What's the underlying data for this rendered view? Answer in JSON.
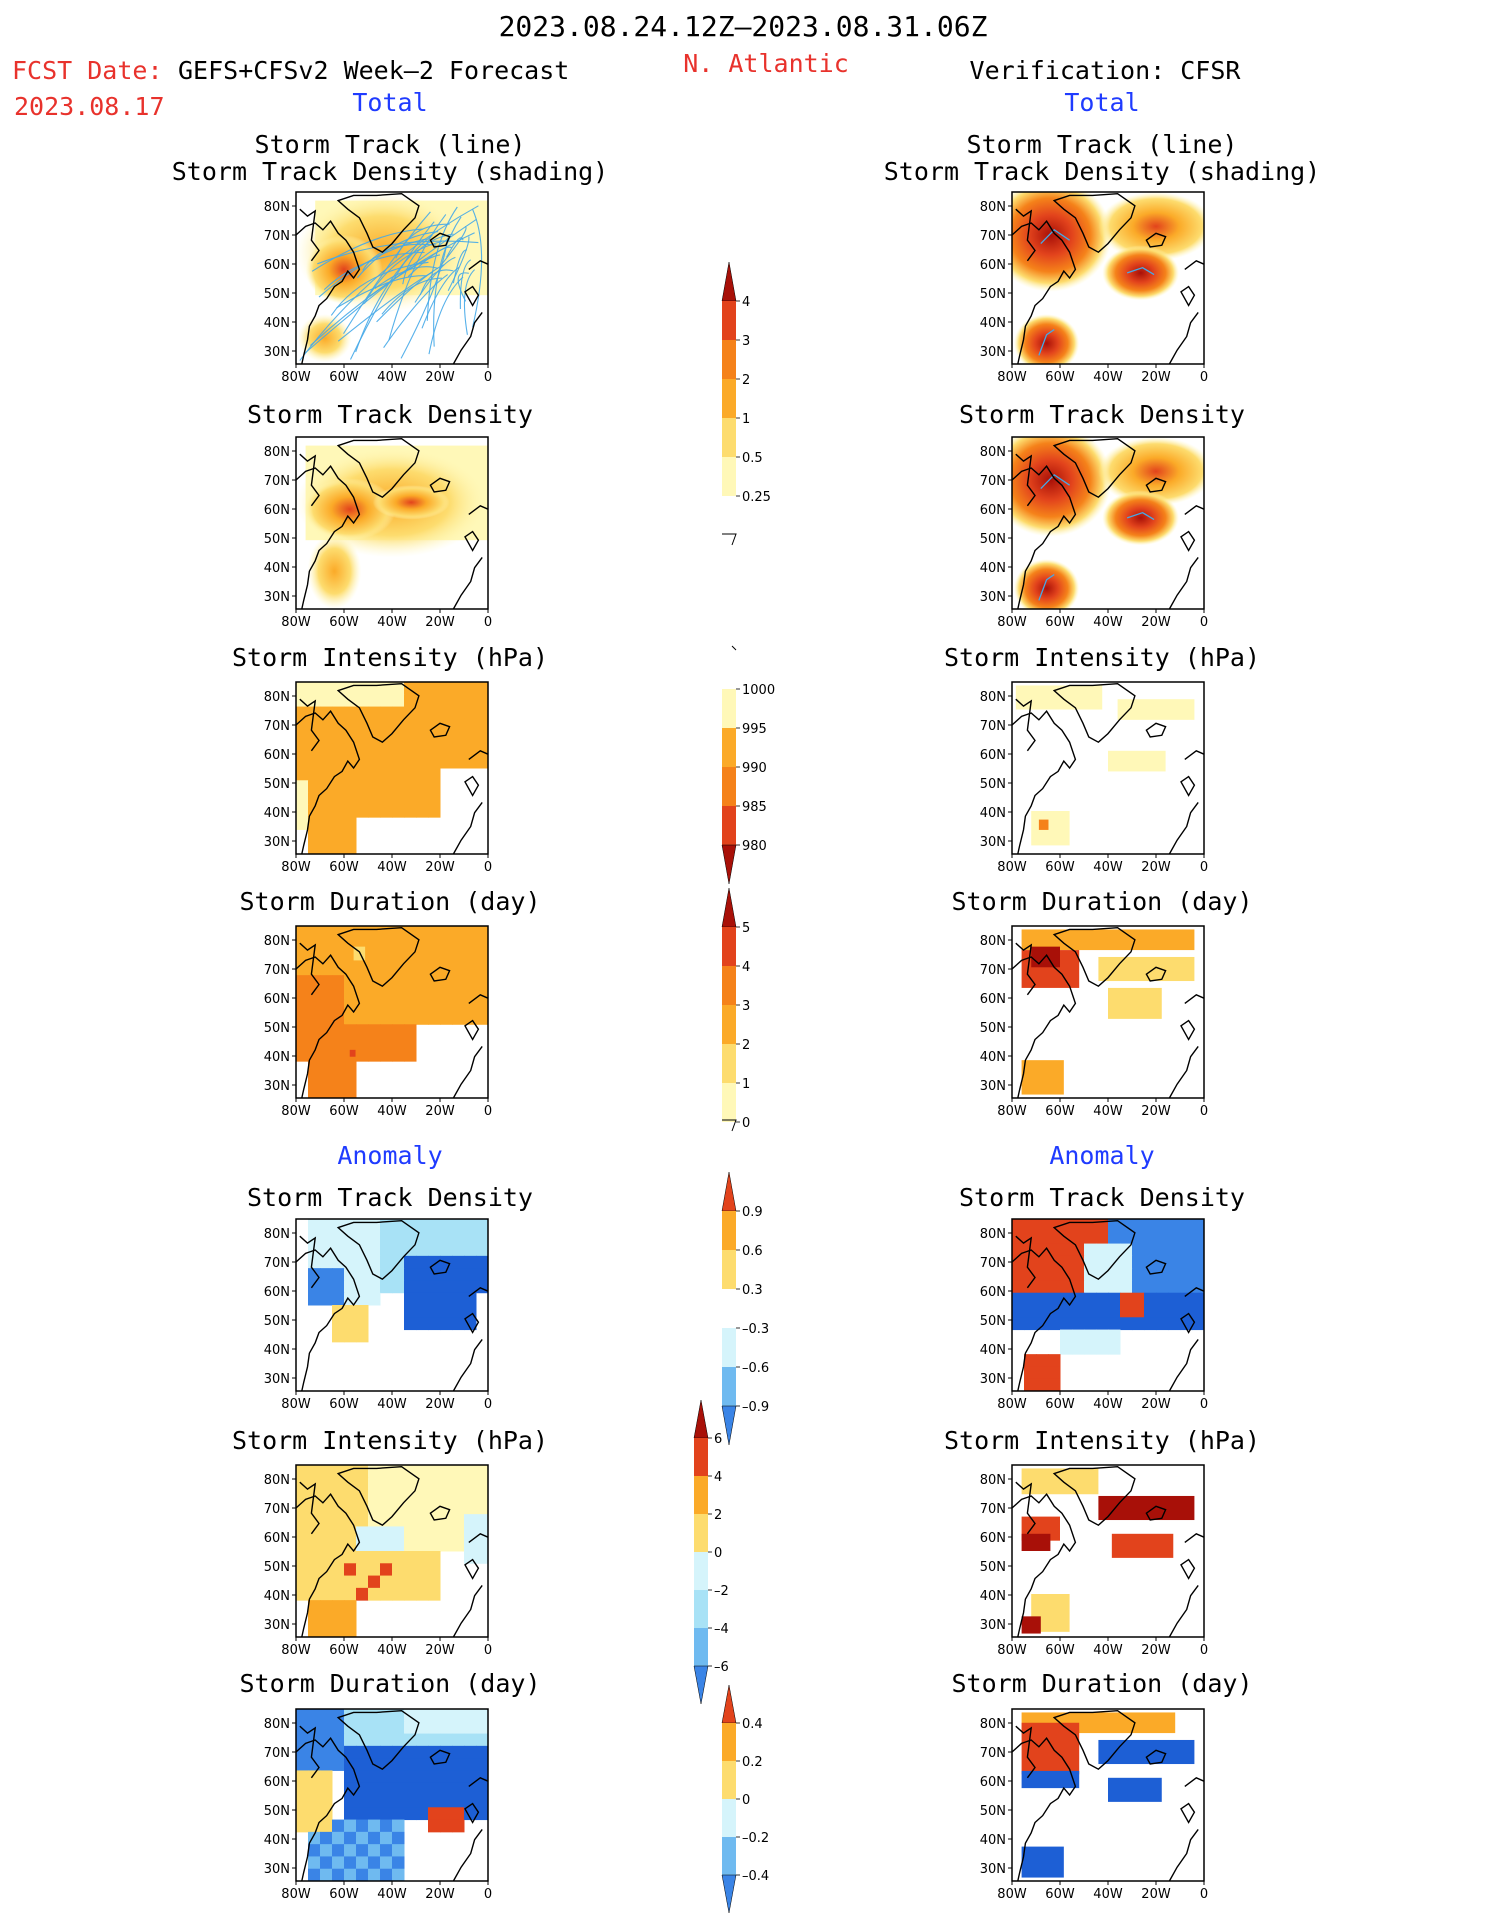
{
  "header": {
    "date_range": "2023.08.24.12Z–2023.08.31.06Z",
    "fcst_label": "FCST Date:",
    "model": "GEFS+CFSv2 Week–2 Forecast",
    "fcst_date": "2023.08.17",
    "region": "N. Atlantic",
    "verification": "Verification: CFSR",
    "total_left": "Total",
    "total_right": "Total",
    "anomaly_left": "Anomaly",
    "anomaly_right": "Anomaly"
  },
  "axes": {
    "lon_labels": [
      "80W",
      "60W",
      "40W",
      "20W",
      "0"
    ],
    "lat_labels": [
      "80N",
      "70N",
      "60N",
      "50N",
      "40N",
      "30N"
    ]
  },
  "panels": {
    "track_line_title_1": "Storm Track (line)",
    "track_line_title_2": "Storm Track Density (shading)",
    "track_density": "Storm Track Density",
    "intensity": "Storm Intensity (hPa)",
    "duration": "Storm Duration (day)"
  },
  "colorbars": {
    "track_density_total": [
      "4",
      "3",
      "2",
      "1",
      "0.5",
      "0.25"
    ],
    "intensity_total": [
      "1000",
      "995",
      "990",
      "985",
      "980"
    ],
    "duration_total": [
      "5",
      "4",
      "3",
      "2",
      "1",
      "0"
    ],
    "track_density_anom": [
      "0.9",
      "0.6",
      "0.3",
      "–0.3",
      "–0.6",
      "–0.9"
    ],
    "intensity_anom": [
      "6",
      "4",
      "2",
      "0",
      "–2",
      "–4",
      "–6"
    ],
    "duration_anom": [
      "0.4",
      "0.2",
      "0",
      "–0.2",
      "–0.4"
    ]
  },
  "colors": {
    "warm": [
      "#fff8b8",
      "#fddc6e",
      "#fbaa28",
      "#f5821a",
      "#e2431c",
      "#a81008"
    ],
    "cool": [
      "#d5f4fb",
      "#a8e2f6",
      "#6fbaf0",
      "#3a84e6",
      "#1d5fd5"
    ],
    "track_line": "#45a9e8"
  }
}
